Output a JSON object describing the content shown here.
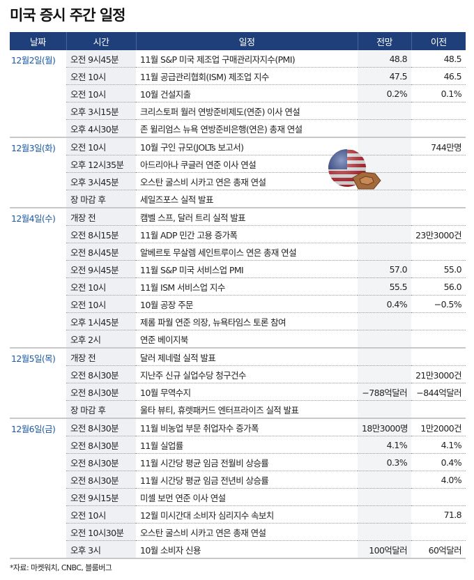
{
  "title": "미국 증시 주간 일정",
  "headers": [
    "날짜",
    "시간",
    "일정",
    "전망",
    "이전"
  ],
  "groups": [
    {
      "date": "12월2일(월)",
      "rows": [
        {
          "time": "오전 9시45분",
          "event": "11월 S&P 미국 제조업 구매관리자지수(PMI)",
          "forecast": "48.8",
          "previous": "48.5"
        },
        {
          "time": "오전 10시",
          "event": "11월 공급관리협회(ISM) 제조업 지수",
          "forecast": "47.5",
          "previous": "46.5"
        },
        {
          "time": "오전 10시",
          "event": "10월 건설지출",
          "forecast": "0.2%",
          "previous": "0.1%"
        },
        {
          "time": "오후 3시15분",
          "event": "크리스토퍼 월러 연방준비제도(연준) 이사 연설",
          "forecast": "",
          "previous": ""
        },
        {
          "time": "오후 4시30분",
          "event": "존 윌리엄스 뉴욕 연방준비은행(연은) 총재 연설",
          "forecast": "",
          "previous": ""
        }
      ]
    },
    {
      "date": "12월3일(화)",
      "rows": [
        {
          "time": "오전 10시",
          "event": "10월 구인 규모(JOLTs 보고서)",
          "forecast": "",
          "previous": "744만명"
        },
        {
          "time": "오후 12시35분",
          "event": "아드리아나 쿠글러 연준 이사 연설",
          "forecast": "",
          "previous": ""
        },
        {
          "time": "오후 3시45분",
          "event": "오스탄 굴스비 시카고 연은 총재 연설",
          "forecast": "",
          "previous": ""
        },
        {
          "time": "장 마감 후",
          "event": "세일즈포스 실적 발표",
          "forecast": "",
          "previous": ""
        }
      ]
    },
    {
      "date": "12월4일(수)",
      "rows": [
        {
          "time": "개장 전",
          "event": "캠벨 스프, 달러 트리 실적 발표",
          "forecast": "",
          "previous": ""
        },
        {
          "time": "오전 8시15분",
          "event": "11월 ADP 민간 고용 증가폭",
          "forecast": "",
          "previous": "23만3000건"
        },
        {
          "time": "오전 8시45분",
          "event": "알베르토 무살렘 세인트루이스 연은 총재 연설",
          "forecast": "",
          "previous": ""
        },
        {
          "time": "오전 9시45분",
          "event": "11월 S&P 미국 서비스업 PMI",
          "forecast": "57.0",
          "previous": "55.0"
        },
        {
          "time": "오전 10시",
          "event": "11월 ISM 서비스업 지수",
          "forecast": "55.5",
          "previous": "56.0"
        },
        {
          "time": "오전 10시",
          "event": "10월 공장 주문",
          "forecast": "0.4%",
          "previous": "−0.5%"
        },
        {
          "time": "오후 1시45분",
          "event": "제롬 파월 연준 의장, 뉴욕타임스 토론 참여",
          "forecast": "",
          "previous": ""
        },
        {
          "time": "오후 2시",
          "event": "연준 베이지북",
          "forecast": "",
          "previous": ""
        }
      ]
    },
    {
      "date": "12월5일(목)",
      "rows": [
        {
          "time": "개장 전",
          "event": "달러 제네럴 실적 발표",
          "forecast": "",
          "previous": ""
        },
        {
          "time": "오전 8시30분",
          "event": "지난주 신규 실업수당 청구건수",
          "forecast": "",
          "previous": "21만3000건"
        },
        {
          "time": "오전 8시30분",
          "event": "10월 무역수지",
          "forecast": "−788억달러",
          "previous": "−844억달러"
        },
        {
          "time": "장 마감 후",
          "event": "울타 뷰티, 휴렛패커드 엔터프라이즈 실적 발표",
          "forecast": "",
          "previous": ""
        }
      ]
    },
    {
      "date": "12월6일(금)",
      "rows": [
        {
          "time": "오전 8시30분",
          "event": "11월 비농업 부문 취업자수 증가폭",
          "forecast": "18만3000명",
          "previous": "1만2000건"
        },
        {
          "time": "오전 8시30분",
          "event": "11월 실업률",
          "forecast": "4.1%",
          "previous": "4.1%"
        },
        {
          "time": "오전 8시30분",
          "event": "11월 시간당 평균 임금 전월비 상승률",
          "forecast": "0.3%",
          "previous": "0.4%"
        },
        {
          "time": "오전 8시30분",
          "event": "11월 시간당 평균 임금 전년비 상승률",
          "forecast": "",
          "previous": "4.0%"
        },
        {
          "time": "오전 9시15분",
          "event": "미셸 보먼 연준 이사 연설",
          "forecast": "",
          "previous": ""
        },
        {
          "time": "오전 10시",
          "event": "12월 미시간대 소비자 심리지수 속보치",
          "forecast": "",
          "previous": "71.8"
        },
        {
          "time": "오전 10시30분",
          "event": "오스탄 굴스비 시카고 연은 총재 연설",
          "forecast": "",
          "previous": ""
        },
        {
          "time": "오후 3시",
          "event": "10월 소비자 신용",
          "forecast": "100억달러",
          "previous": "60억달러"
        }
      ]
    }
  ],
  "source": "*자료: 마켓워치, CNBC, 블룸버그",
  "colors": {
    "header_bg": "#1f3f7a",
    "date_text": "#1c5aa6",
    "time_bg": "#eef0f4"
  },
  "decoration": {
    "icon": "us-flag-ball-and-pentagon-icon"
  }
}
